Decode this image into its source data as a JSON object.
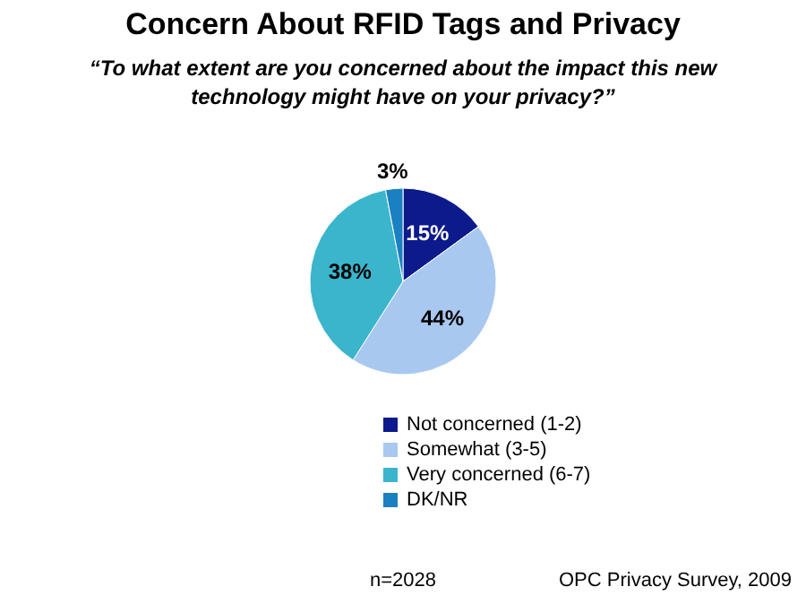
{
  "chart_data": {
    "type": "pie",
    "title": "Concern About RFID Tags and Privacy",
    "subtitle": "“To what extent are you concerned about the impact this new technology might have on your privacy?”",
    "categories": [
      "Not concerned (1-2)",
      "Somewhat (3-5)",
      "Very concerned (6-7)",
      "DK/NR"
    ],
    "values": [
      15,
      44,
      38,
      3
    ],
    "colors": [
      "#0c1a8c",
      "#a9c8ef",
      "#3ab5cc",
      "#1a80c0"
    ],
    "value_labels": [
      "15%",
      "44%",
      "38%",
      "3%"
    ],
    "legend": "bottom",
    "annotations": [
      "n=2028",
      "OPC Privacy Survey, 2009"
    ]
  }
}
